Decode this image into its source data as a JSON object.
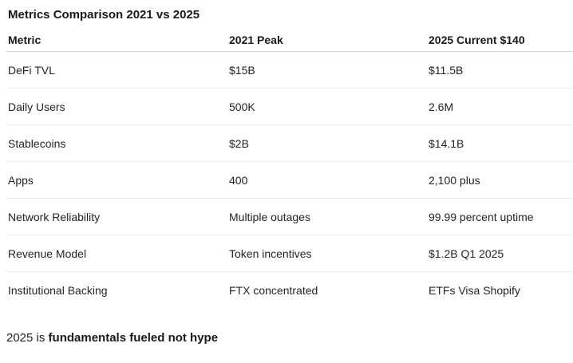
{
  "page": {
    "title": "Metrics Comparison 2021 vs 2025"
  },
  "table": {
    "columns": [
      "Metric",
      "2021 Peak",
      "2025 Current $140"
    ],
    "rows": [
      [
        "DeFi TVL",
        "$15B",
        "$11.5B"
      ],
      [
        "Daily Users",
        "500K",
        "2.6M"
      ],
      [
        "Stablecoins",
        "$2B",
        "$14.1B"
      ],
      [
        "Apps",
        "400",
        "2,100 plus"
      ],
      [
        "Network Reliability",
        "Multiple outages",
        "99.99 percent uptime"
      ],
      [
        "Revenue Model",
        "Token incentives",
        "$1.2B Q1 2025"
      ],
      [
        "Institutional Backing",
        "FTX concentrated",
        "ETFs Visa Shopify"
      ]
    ]
  },
  "footer": {
    "prefix": "2025 is ",
    "bold_text": "fundamentals fueled not hype"
  },
  "colors": {
    "background": "#ffffff",
    "heading_text": "#1a1a1a",
    "body_text": "#242424",
    "header_divider": "#d6d6d6",
    "row_divider": "#ebebeb"
  }
}
